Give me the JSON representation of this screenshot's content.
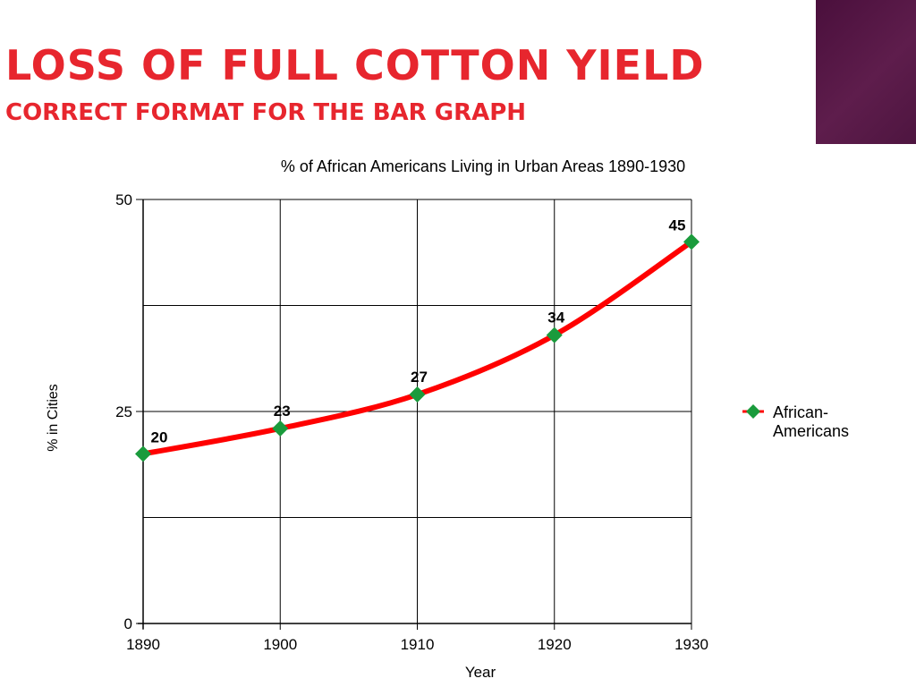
{
  "slide": {
    "title": "Loss of full cotton yield",
    "subtitle": "Correct format for the bar graph",
    "accent_color": "#e7262e",
    "corner_block_color": "#4a0f3c"
  },
  "chart_data": {
    "type": "line",
    "title": "% of African Americans Living in Urban Areas 1890-1930",
    "xlabel": "Year",
    "ylabel": "% in Cities",
    "x": [
      1890,
      1900,
      1910,
      1920,
      1930
    ],
    "xlim": [
      1890,
      1930
    ],
    "ylim": [
      0,
      50
    ],
    "yticks": [
      0,
      25,
      50
    ],
    "ygrid_lines": [
      0,
      12.5,
      25,
      37.5,
      50
    ],
    "xtick_labels": [
      "1890",
      "1900",
      "1910",
      "1920",
      "1930"
    ],
    "ytick_labels": [
      "0",
      "25",
      "50"
    ],
    "grid": true,
    "legend_position": "right",
    "series": [
      {
        "name": "African-Americans",
        "values": [
          20,
          23,
          27,
          34,
          45
        ],
        "data_labels": [
          "20",
          "23",
          "27",
          "34",
          "45"
        ],
        "line_color": "#ff0000",
        "marker_color": "#1a9b3c",
        "marker": "diamond"
      }
    ]
  }
}
